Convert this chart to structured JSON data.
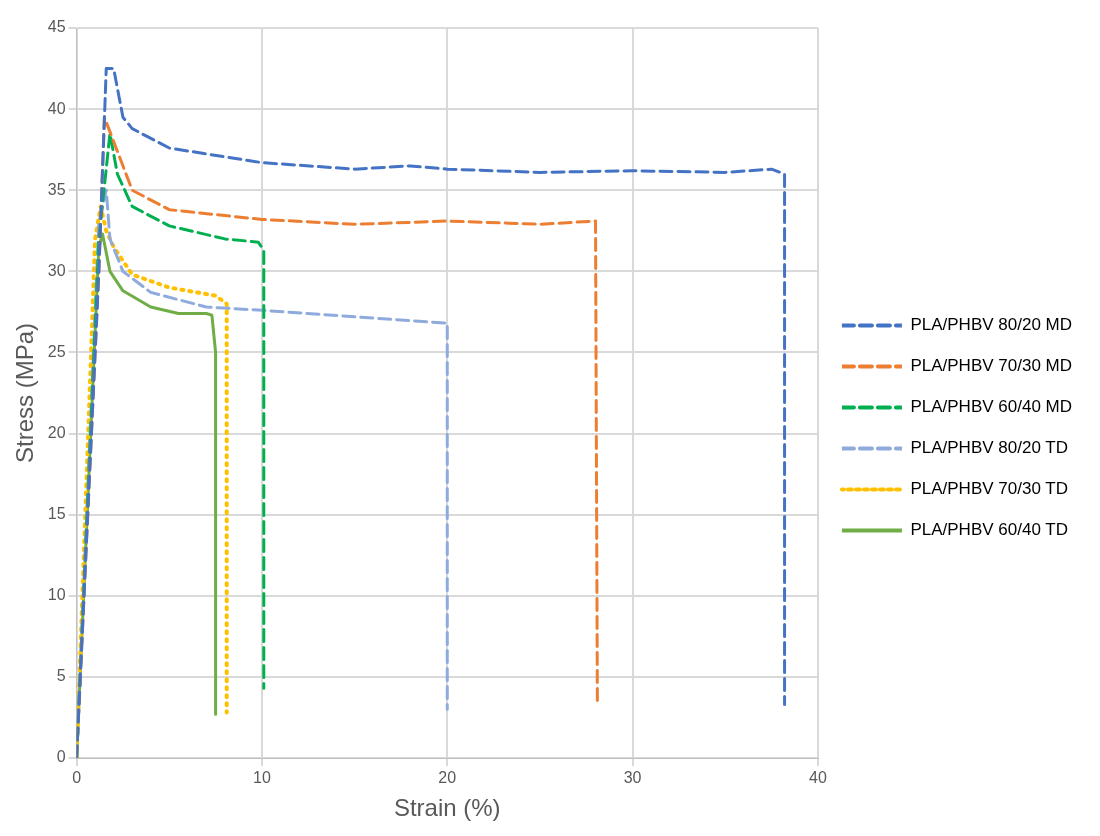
{
  "chart_data": {
    "type": "line",
    "xlabel": "Strain (%)",
    "ylabel": "Stress (MPa)",
    "xlim": [
      0,
      40
    ],
    "xticks": [
      0,
      10,
      20,
      30,
      40
    ],
    "ylim": [
      0,
      45
    ],
    "yticks": [
      0,
      5,
      10,
      15,
      20,
      25,
      30,
      35,
      40,
      45
    ],
    "grid": true,
    "legend": "right",
    "marker": "none",
    "series": [
      {
        "name": "PLA/PHBV 80/20 MD",
        "color": "#4472c4",
        "line_style": "dashed",
        "x": [
          0,
          1.2,
          1.6,
          2.0,
          2.5,
          3,
          5,
          10,
          15,
          18,
          20,
          25,
          30,
          35,
          37.5,
          38.2,
          38.2
        ],
        "values": [
          0,
          30,
          42.5,
          42.5,
          39.5,
          38.8,
          37.6,
          36.7,
          36.3,
          36.5,
          36.3,
          36.1,
          36.2,
          36.1,
          36.3,
          36,
          3.3
        ]
      },
      {
        "name": "PLA/PHBV 70/30 MD",
        "color": "#ed7d31",
        "line_style": "dashed",
        "x": [
          0,
          1.2,
          1.5,
          2,
          3,
          5,
          10,
          15,
          20,
          25,
          28,
          28.1
        ],
        "values": [
          0,
          30,
          39.5,
          38,
          35,
          33.8,
          33.2,
          32.9,
          33.1,
          32.9,
          33.1,
          3.3
        ]
      },
      {
        "name": "PLA/PHBV 60/40 MD",
        "color": "#00b050",
        "line_style": "dashed",
        "x": [
          0,
          1.2,
          1.8,
          2.2,
          3,
          5,
          8,
          9.8,
          10.1,
          10.1
        ],
        "values": [
          0,
          32,
          38.5,
          36,
          34,
          32.8,
          32,
          31.8,
          31.3,
          4.3
        ]
      },
      {
        "name": "PLA/PHBV 80/20 TD",
        "color": "#8faadc",
        "line_style": "dashed",
        "x": [
          0,
          1.2,
          1.6,
          1.8,
          2.5,
          4,
          7,
          10,
          15,
          20,
          20
        ],
        "values": [
          0,
          33,
          35,
          32,
          30,
          28.7,
          27.8,
          27.6,
          27.2,
          26.8,
          3
        ]
      },
      {
        "name": "PLA/PHBV 70/30 TD",
        "color": "#ffc000",
        "line_style": "dotted",
        "x": [
          0,
          1.0,
          1.3,
          1.6,
          2,
          3,
          5,
          7.5,
          8.1,
          8.1
        ],
        "values": [
          0,
          32,
          34,
          32.5,
          31.5,
          29.8,
          29,
          28.5,
          28,
          2.8
        ]
      },
      {
        "name": "PLA/PHBV 60/40 TD",
        "color": "#70ad47",
        "line_style": "solid",
        "x": [
          0,
          1.2,
          1.4,
          1.8,
          2.5,
          4,
          5.5,
          7,
          7.3,
          7.5,
          7.5
        ],
        "values": [
          0,
          31.5,
          32.3,
          30,
          28.8,
          27.8,
          27.4,
          27.4,
          27.3,
          25,
          2.7
        ]
      }
    ]
  }
}
